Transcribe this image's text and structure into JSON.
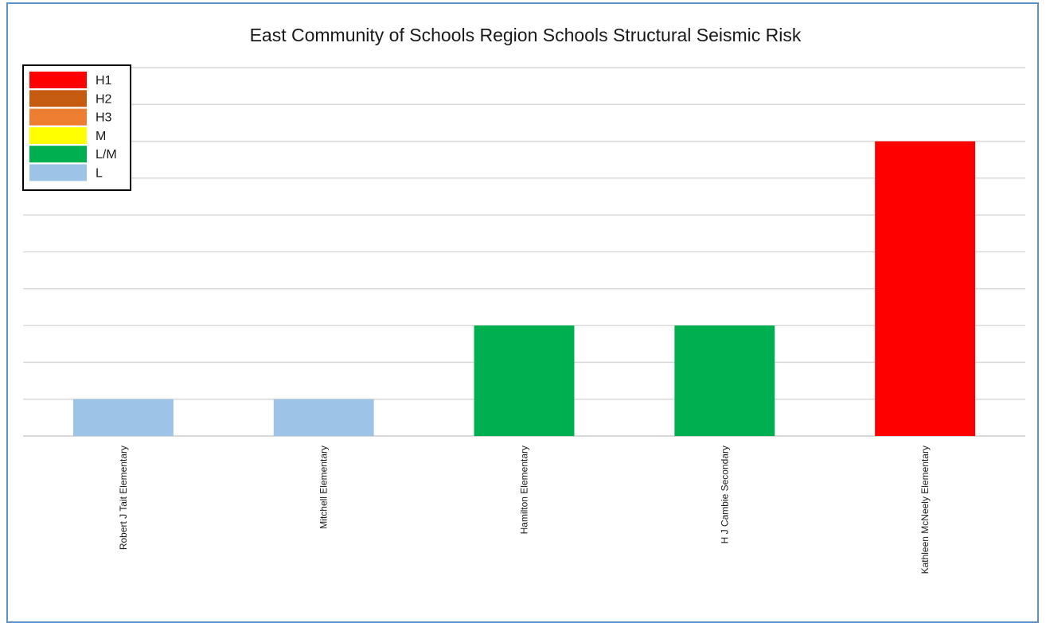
{
  "chart_data": {
    "type": "bar",
    "title": "East Community of Schools Region Schools Structural Seismic Risk",
    "xlabel": "",
    "ylabel": "",
    "ylim": [
      0,
      10
    ],
    "grid": true,
    "legend_position": "top-left",
    "categories": [
      "Robert J Tait Elementary",
      "Mitchell Elementary",
      "Hamilton Elementary",
      "H J Cambie Secondary",
      "Kathleen McNeely Elementary"
    ],
    "values": [
      1,
      1,
      3,
      3,
      8
    ],
    "risk": [
      "L",
      "L",
      "L/M",
      "L/M",
      "H1"
    ],
    "legend": [
      {
        "label": "H1",
        "color": "#ff0000"
      },
      {
        "label": "H2",
        "color": "#c55a11"
      },
      {
        "label": "H3",
        "color": "#ed7d31"
      },
      {
        "label": "M",
        "color": "#ffff00"
      },
      {
        "label": "L/M",
        "color": "#00b050"
      },
      {
        "label": "L",
        "color": "#9dc3e6"
      }
    ]
  }
}
